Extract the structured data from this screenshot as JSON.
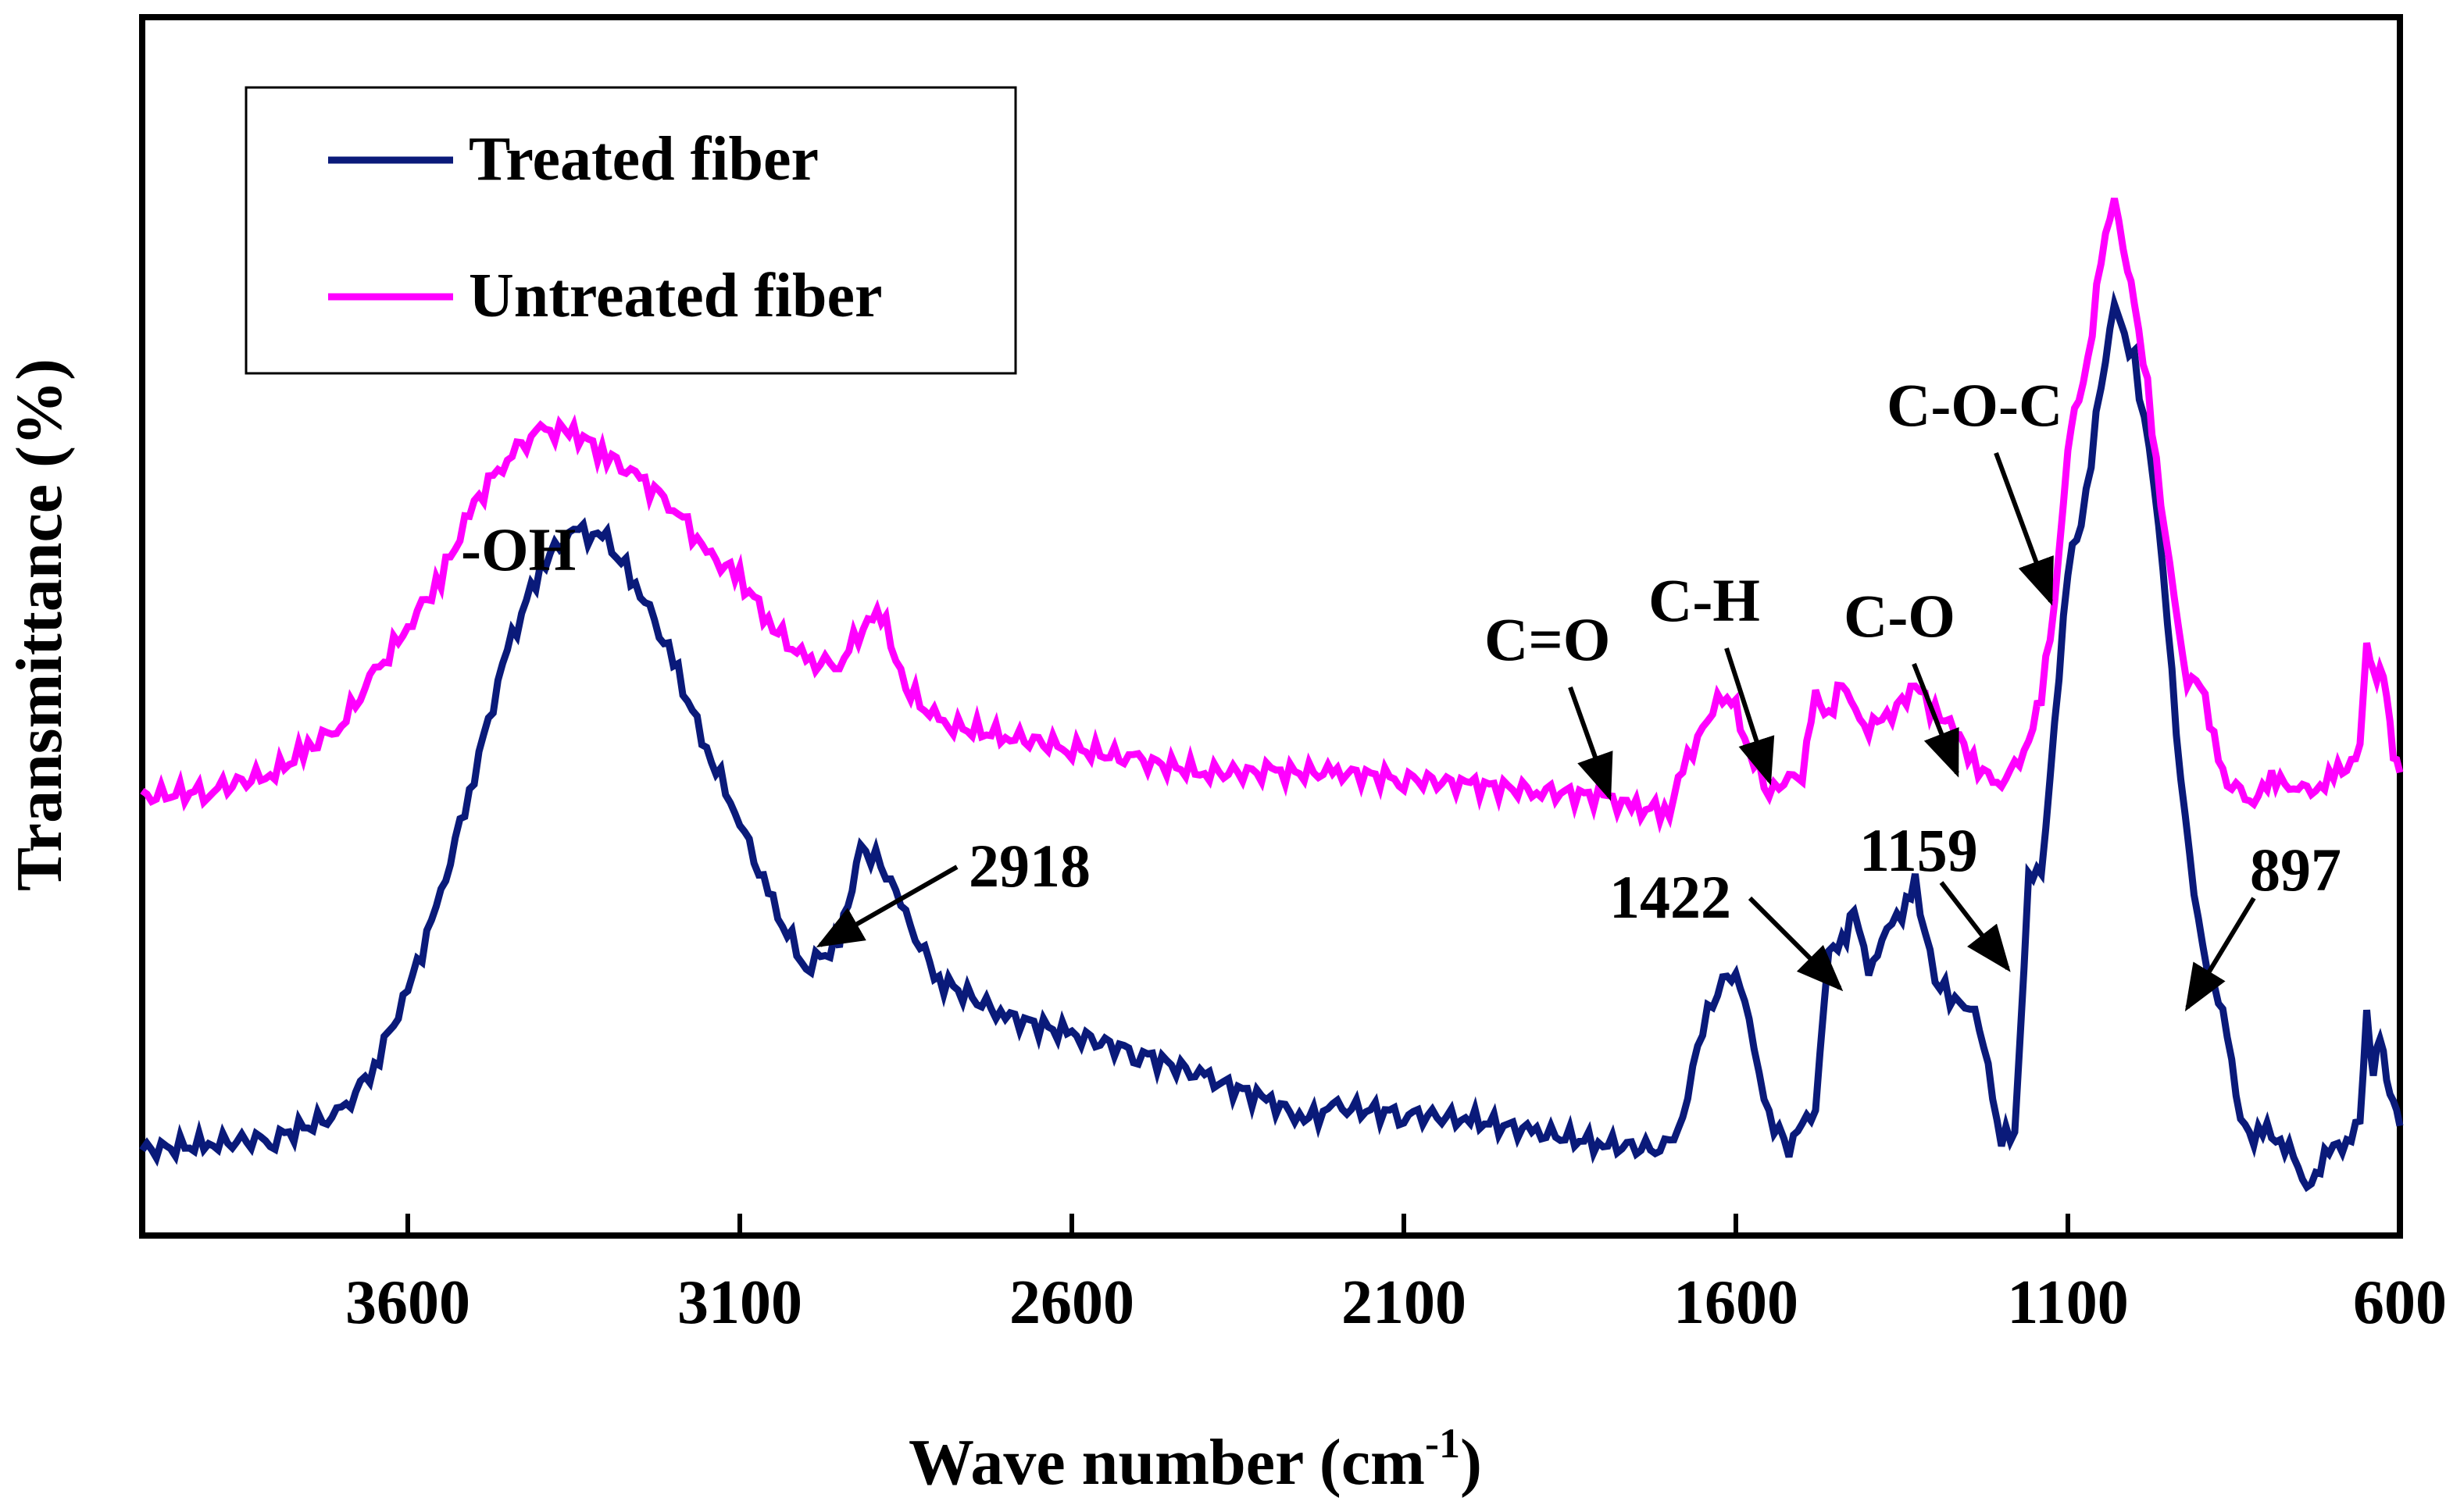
{
  "chart_data": {
    "type": "line",
    "title": "",
    "xlabel": "Wave number (cm",
    "xlabel_sup": "-1",
    "xlabel_tail": ")",
    "ylabel": "Transmittance (%)",
    "xlim": [
      4000,
      600
    ],
    "x_reversed": true,
    "ylim": [
      0,
      100
    ],
    "y_ticks_shown": false,
    "x_ticks": [
      3600,
      3100,
      2600,
      2100,
      1600,
      1100,
      600
    ],
    "x_tick_labels": [
      "3600",
      "3100",
      "2600",
      "2100",
      "1600",
      "1100",
      "600"
    ],
    "legend": {
      "position": "top-left",
      "entries": [
        {
          "label": "Treated fiber",
          "color": "#0a1a7a"
        },
        {
          "label": "Untreated fiber",
          "color": "#ff00ff"
        }
      ]
    },
    "series": [
      {
        "name": "Treated fiber",
        "color": "#0a1a7a",
        "points": [
          [
            4000,
            7
          ],
          [
            3900,
            7.5
          ],
          [
            3800,
            8
          ],
          [
            3700,
            10
          ],
          [
            3650,
            14
          ],
          [
            3600,
            20
          ],
          [
            3550,
            28
          ],
          [
            3500,
            38
          ],
          [
            3450,
            48
          ],
          [
            3400,
            55
          ],
          [
            3350,
            58
          ],
          [
            3300,
            57
          ],
          [
            3250,
            53
          ],
          [
            3200,
            47
          ],
          [
            3150,
            40
          ],
          [
            3100,
            34
          ],
          [
            3050,
            27
          ],
          [
            3000,
            22
          ],
          [
            2950,
            24
          ],
          [
            2918,
            32
          ],
          [
            2880,
            30
          ],
          [
            2850,
            26
          ],
          [
            2800,
            21
          ],
          [
            2700,
            18
          ],
          [
            2600,
            16.5
          ],
          [
            2500,
            15
          ],
          [
            2400,
            13
          ],
          [
            2300,
            11
          ],
          [
            2250,
            9.5
          ],
          [
            2200,
            10.5
          ],
          [
            2100,
            10
          ],
          [
            2000,
            9.5
          ],
          [
            1900,
            8.5
          ],
          [
            1800,
            7.5
          ],
          [
            1700,
            7
          ],
          [
            1680,
            10
          ],
          [
            1650,
            17
          ],
          [
            1620,
            21
          ],
          [
            1600,
            22
          ],
          [
            1580,
            17
          ],
          [
            1550,
            10
          ],
          [
            1520,
            7
          ],
          [
            1500,
            9
          ],
          [
            1480,
            11
          ],
          [
            1460,
            23
          ],
          [
            1440,
            24
          ],
          [
            1422,
            27
          ],
          [
            1400,
            21
          ],
          [
            1380,
            25
          ],
          [
            1350,
            26
          ],
          [
            1330,
            29
          ],
          [
            1300,
            21
          ],
          [
            1270,
            19
          ],
          [
            1240,
            19
          ],
          [
            1200,
            8
          ],
          [
            1180,
            8
          ],
          [
            1159,
            30
          ],
          [
            1140,
            29
          ],
          [
            1120,
            42
          ],
          [
            1100,
            55
          ],
          [
            1080,
            58
          ],
          [
            1050,
            70
          ],
          [
            1030,
            76
          ],
          [
            1000,
            72
          ],
          [
            970,
            62
          ],
          [
            950,
            50
          ],
          [
            930,
            38
          ],
          [
            910,
            28
          ],
          [
            897,
            23
          ],
          [
            880,
            21
          ],
          [
            860,
            16
          ],
          [
            840,
            10
          ],
          [
            820,
            8
          ],
          [
            800,
            8.5
          ],
          [
            780,
            8
          ],
          [
            760,
            6
          ],
          [
            740,
            4
          ],
          [
            720,
            6
          ],
          [
            700,
            7
          ],
          [
            680,
            8
          ],
          [
            660,
            9
          ],
          [
            650,
            18
          ],
          [
            640,
            14
          ],
          [
            630,
            16
          ],
          [
            620,
            13
          ],
          [
            610,
            11
          ],
          [
            600,
            9
          ]
        ]
      },
      {
        "name": "Untreated fiber",
        "color": "#ff00ff",
        "points": [
          [
            4000,
            36
          ],
          [
            3900,
            36.5
          ],
          [
            3800,
            38
          ],
          [
            3750,
            40
          ],
          [
            3700,
            42
          ],
          [
            3650,
            46
          ],
          [
            3600,
            50
          ],
          [
            3550,
            54
          ],
          [
            3500,
            60
          ],
          [
            3450,
            64
          ],
          [
            3400,
            66
          ],
          [
            3350,
            66
          ],
          [
            3300,
            64
          ],
          [
            3250,
            62
          ],
          [
            3200,
            60
          ],
          [
            3150,
            56
          ],
          [
            3100,
            54
          ],
          [
            3050,
            50
          ],
          [
            3000,
            47
          ],
          [
            2950,
            47
          ],
          [
            2900,
            51
          ],
          [
            2880,
            50
          ],
          [
            2850,
            45
          ],
          [
            2800,
            42
          ],
          [
            2700,
            41
          ],
          [
            2600,
            40
          ],
          [
            2500,
            39
          ],
          [
            2400,
            38
          ],
          [
            2300,
            38
          ],
          [
            2200,
            38
          ],
          [
            2100,
            37.5
          ],
          [
            2000,
            37
          ],
          [
            1900,
            36.5
          ],
          [
            1800,
            36
          ],
          [
            1750,
            35
          ],
          [
            1700,
            35
          ],
          [
            1680,
            38
          ],
          [
            1650,
            42
          ],
          [
            1620,
            44
          ],
          [
            1600,
            43
          ],
          [
            1580,
            40
          ],
          [
            1550,
            36
          ],
          [
            1520,
            38
          ],
          [
            1500,
            38
          ],
          [
            1480,
            44
          ],
          [
            1460,
            43
          ],
          [
            1440,
            45
          ],
          [
            1420,
            43
          ],
          [
            1400,
            42
          ],
          [
            1380,
            42
          ],
          [
            1350,
            44
          ],
          [
            1330,
            45
          ],
          [
            1300,
            43
          ],
          [
            1270,
            42
          ],
          [
            1250,
            39
          ],
          [
            1220,
            38
          ],
          [
            1200,
            37
          ],
          [
            1180,
            38
          ],
          [
            1159,
            41
          ],
          [
            1140,
            44
          ],
          [
            1120,
            52
          ],
          [
            1100,
            65
          ],
          [
            1090,
            67
          ],
          [
            1070,
            72
          ],
          [
            1050,
            80
          ],
          [
            1030,
            85
          ],
          [
            1010,
            80
          ],
          [
            1000,
            76
          ],
          [
            980,
            70
          ],
          [
            960,
            60
          ],
          [
            940,
            52
          ],
          [
            920,
            46
          ],
          [
            900,
            45
          ],
          [
            880,
            41
          ],
          [
            860,
            37
          ],
          [
            840,
            36
          ],
          [
            820,
            36
          ],
          [
            800,
            37
          ],
          [
            780,
            37.5
          ],
          [
            760,
            37
          ],
          [
            740,
            36
          ],
          [
            720,
            37
          ],
          [
            700,
            38
          ],
          [
            680,
            38
          ],
          [
            660,
            41
          ],
          [
            650,
            48
          ],
          [
            640,
            46
          ],
          [
            630,
            47
          ],
          [
            620,
            44
          ],
          [
            610,
            40
          ],
          [
            600,
            38
          ]
        ]
      }
    ],
    "annotations": [
      {
        "label": "-OH",
        "kind": "peak_label"
      },
      {
        "label": "2918",
        "kind": "arrow"
      },
      {
        "label": "C=O",
        "kind": "arrow"
      },
      {
        "label": "C-H",
        "kind": "arrow"
      },
      {
        "label": "C-O",
        "kind": "arrow"
      },
      {
        "label": "C-O-C",
        "kind": "arrow"
      },
      {
        "label": "1422",
        "kind": "arrow"
      },
      {
        "label": "1159",
        "kind": "arrow"
      },
      {
        "label": "897",
        "kind": "arrow"
      }
    ]
  }
}
